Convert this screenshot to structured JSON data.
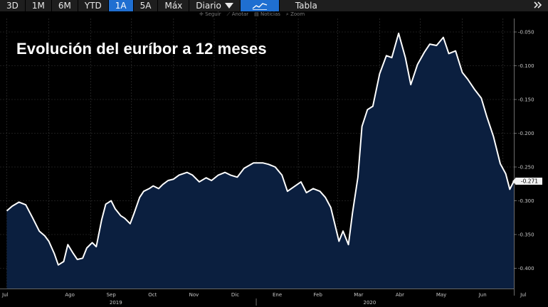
{
  "toolbar": {
    "ranges": [
      "3D",
      "1M",
      "6M",
      "YTD",
      "1A",
      "5A",
      "Máx"
    ],
    "active_range": "1A",
    "frequency": "Diario",
    "view": "Tabla",
    "icons": [
      "line-chart-icon",
      "chevron-down-icon",
      "double-chevron-right-icon"
    ]
  },
  "subbar": {
    "seguir": "Seguir",
    "anotar": "Anotar",
    "noticias": "Noticias",
    "zoom": "Zoom"
  },
  "colors": {
    "background": "#000000",
    "area_fill": "#0b1f3f",
    "line": "#ffffff",
    "accent": "#1f6fd1"
  },
  "chart_data": {
    "type": "area",
    "title": "Evolución del euríbor a 12 meses",
    "xlabel": "",
    "ylabel": "",
    "x_tick_labels": [
      "Jul",
      "Ago",
      "Sep",
      "Oct",
      "Nov",
      "Dic",
      "Ene",
      "Feb",
      "Mar",
      "Abr",
      "May",
      "Jun",
      "Jul"
    ],
    "year_labels": [
      "2019",
      "2020"
    ],
    "y_tick_labels": [
      "-0.050",
      "-0.100",
      "-0.150",
      "-0.200",
      "-0.250",
      "-0.300",
      "-0.350",
      "-0.400"
    ],
    "ylim": [
      -0.43,
      -0.03
    ],
    "grid": true,
    "last_value_label": "-0.271",
    "x": [
      "2019-07-01",
      "2019-07-05",
      "2019-07-10",
      "2019-07-15",
      "2019-07-20",
      "2019-07-25",
      "2019-07-29",
      "2019-08-01",
      "2019-08-05",
      "2019-08-08",
      "2019-08-12",
      "2019-08-15",
      "2019-08-19",
      "2019-08-22",
      "2019-08-26",
      "2019-08-29",
      "2019-09-02",
      "2019-09-05",
      "2019-09-09",
      "2019-09-12",
      "2019-09-16",
      "2019-09-19",
      "2019-09-23",
      "2019-09-26",
      "2019-09-30",
      "2019-10-03",
      "2019-10-07",
      "2019-10-10",
      "2019-10-14",
      "2019-10-17",
      "2019-10-21",
      "2019-10-24",
      "2019-10-28",
      "2019-11-01",
      "2019-11-05",
      "2019-11-11",
      "2019-11-15",
      "2019-11-20",
      "2019-11-25",
      "2019-11-29",
      "2019-12-04",
      "2019-12-09",
      "2019-12-13",
      "2019-12-18",
      "2019-12-23",
      "2019-12-30",
      "2020-01-06",
      "2020-01-10",
      "2020-01-15",
      "2020-01-20",
      "2020-01-24",
      "2020-01-29",
      "2020-02-03",
      "2020-02-07",
      "2020-02-12",
      "2020-02-17",
      "2020-02-21",
      "2020-02-25",
      "2020-03-02",
      "2020-03-05",
      "2020-03-09",
      "2020-03-12",
      "2020-03-16",
      "2020-03-19",
      "2020-03-23",
      "2020-03-27",
      "2020-04-01",
      "2020-04-06",
      "2020-04-10",
      "2020-04-15",
      "2020-04-20",
      "2020-04-24",
      "2020-04-29",
      "2020-05-04",
      "2020-05-08",
      "2020-05-13",
      "2020-05-18",
      "2020-05-22",
      "2020-05-27",
      "2020-06-01",
      "2020-06-05",
      "2020-06-10",
      "2020-06-15",
      "2020-06-19",
      "2020-06-24",
      "2020-06-29",
      "2020-07-03",
      "2020-07-06",
      "2020-07-09"
    ],
    "series": [
      {
        "values": [
          -0.315,
          -0.308,
          -0.302,
          -0.306,
          -0.325,
          -0.345,
          -0.352,
          -0.36,
          -0.378,
          -0.395,
          -0.39,
          -0.365,
          -0.378,
          -0.387,
          -0.385,
          -0.37,
          -0.362,
          -0.368,
          -0.328,
          -0.305,
          -0.3,
          -0.312,
          -0.322,
          -0.326,
          -0.334,
          -0.318,
          -0.295,
          -0.286,
          -0.282,
          -0.278,
          -0.282,
          -0.276,
          -0.27,
          -0.268,
          -0.262,
          -0.258,
          -0.262,
          -0.272,
          -0.266,
          -0.27,
          -0.262,
          -0.258,
          -0.262,
          -0.265,
          -0.252,
          -0.244,
          -0.244,
          -0.246,
          -0.25,
          -0.262,
          -0.286,
          -0.279,
          -0.272,
          -0.288,
          -0.282,
          -0.286,
          -0.295,
          -0.31,
          -0.36,
          -0.345,
          -0.365,
          -0.318,
          -0.265,
          -0.19,
          -0.165,
          -0.16,
          -0.112,
          -0.085,
          -0.088,
          -0.052,
          -0.088,
          -0.128,
          -0.098,
          -0.08,
          -0.068,
          -0.07,
          -0.058,
          -0.082,
          -0.078,
          -0.11,
          -0.12,
          -0.135,
          -0.148,
          -0.175,
          -0.205,
          -0.245,
          -0.26,
          -0.283,
          -0.271
        ]
      }
    ]
  }
}
